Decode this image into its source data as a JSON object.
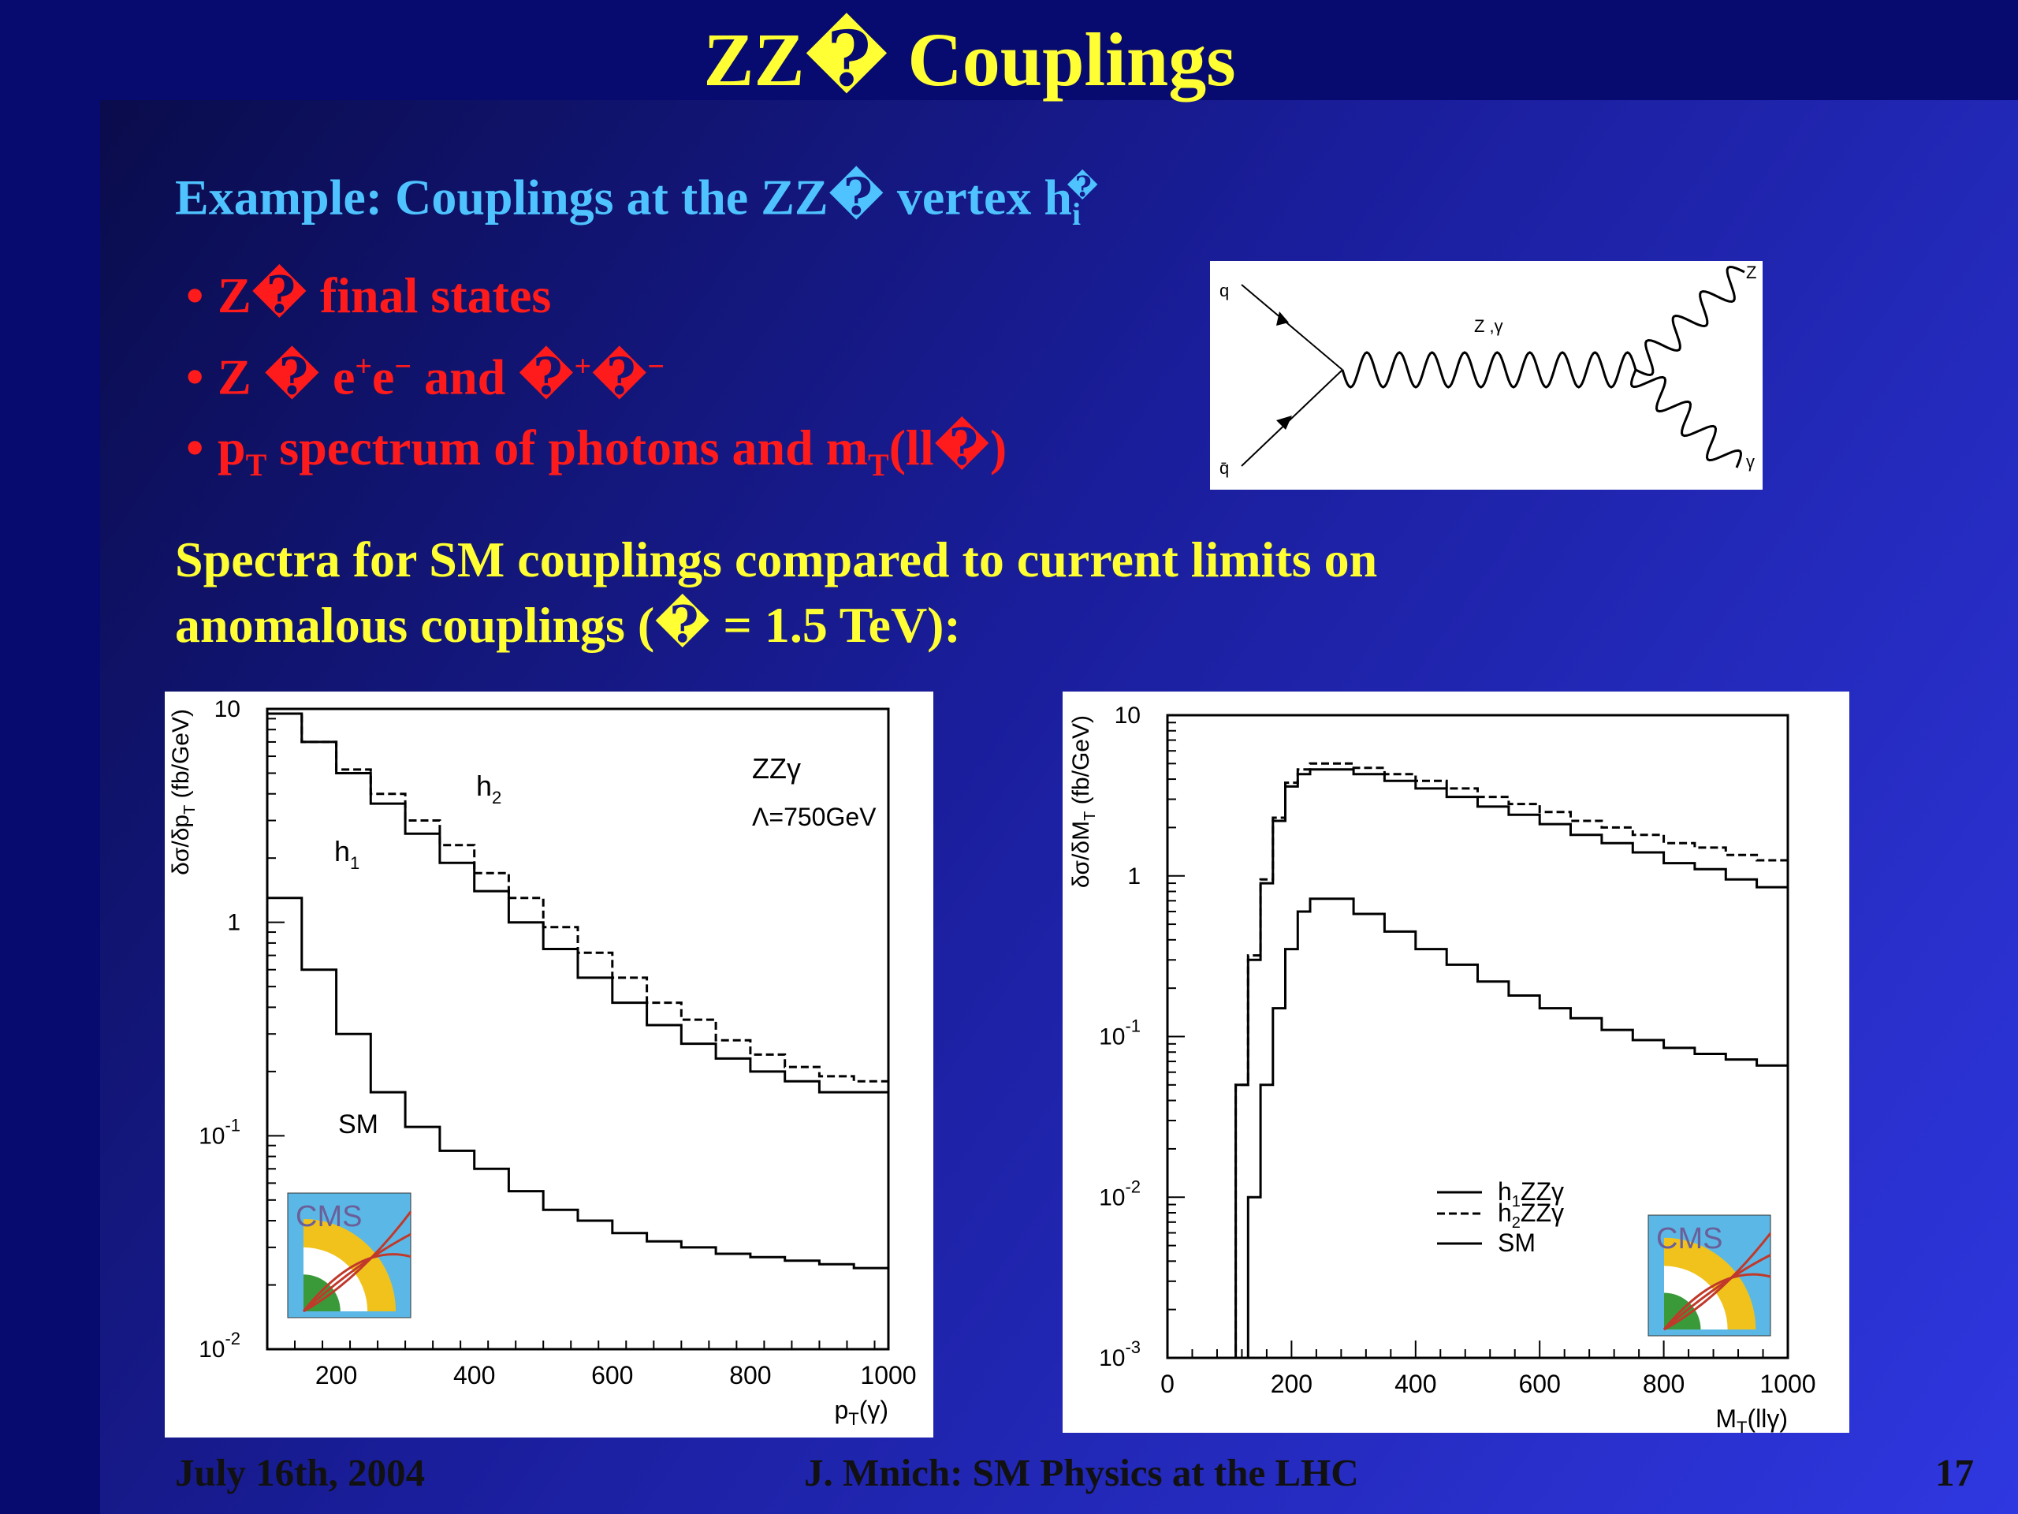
{
  "slide": {
    "title": "ZZ� Couplings",
    "subtitle": "Example: Couplings at the ZZ� vertex h",
    "subtitle_sub": "i",
    "subtitle_sup": "�",
    "bullets": [
      {
        "parts": [
          "Z� final states"
        ]
      },
      {
        "parts": [
          "Z � e",
          "+",
          "e",
          "−",
          " and �",
          "+",
          "�",
          "−"
        ]
      },
      {
        "parts": [
          "p",
          "T",
          " spectrum of photons and m",
          "T",
          "(ll�)"
        ]
      }
    ],
    "spectra_line1": "Spectra for SM couplings compared  to current limits on",
    "spectra_line2": "anomalous couplings (� = 1.5 TeV):",
    "colors": {
      "title": "#ffff33",
      "subtitle": "#4ec3ff",
      "bullets": "#ff1b1b",
      "spectra": "#ffff33",
      "background": "#070a6e"
    }
  },
  "feynman": {
    "q": "q",
    "qbar": "q̄",
    "propagator": "Z ,γ",
    "out_z": "Z",
    "out_gamma": "γ"
  },
  "footer": {
    "date": "July 16th, 2004",
    "center": "J. Mnich: SM Physics at the LHC",
    "page": "17"
  },
  "chart_data": [
    {
      "type": "line",
      "title": "",
      "annotation_process": "ZZγ",
      "annotation_lambda": "Λ=750GeV",
      "xlabel": "p",
      "xlabel_sub": "T",
      "xlabel_suffix": "(γ)",
      "ylabel": "δσ/δp",
      "ylabel_sub": "T",
      "ylabel_suffix": " (fb/GeV)",
      "xlim": [
        100,
        1000
      ],
      "ylim": [
        0.01,
        10
      ],
      "yscale": "log",
      "xticks": [
        "200",
        "400",
        "600",
        "800",
        "1000"
      ],
      "yticks": [
        {
          "value": 10,
          "label": "10"
        },
        {
          "value": 1,
          "label": "1"
        },
        {
          "value": 0.1,
          "label": "10",
          "sup": "-1"
        },
        {
          "value": 0.01,
          "label": "10",
          "sup": "-2"
        }
      ],
      "legend_logo": "CMS",
      "series": [
        {
          "name": "h",
          "sub": "2",
          "style": "dashed",
          "x": [
            100,
            150,
            200,
            250,
            300,
            350,
            400,
            450,
            500,
            550,
            600,
            650,
            700,
            750,
            800,
            850,
            900,
            950,
            1000
          ],
          "y": [
            9.5,
            7.0,
            5.2,
            4.0,
            3.0,
            2.3,
            1.7,
            1.3,
            0.95,
            0.72,
            0.55,
            0.42,
            0.35,
            0.28,
            0.24,
            0.21,
            0.19,
            0.18,
            0.17
          ]
        },
        {
          "name": "h",
          "sub": "1",
          "style": "solid",
          "x": [
            100,
            150,
            200,
            250,
            300,
            350,
            400,
            450,
            500,
            550,
            600,
            650,
            700,
            750,
            800,
            850,
            900,
            950,
            1000
          ],
          "y": [
            9.5,
            7.0,
            5.0,
            3.6,
            2.6,
            1.9,
            1.4,
            1.0,
            0.75,
            0.55,
            0.42,
            0.33,
            0.27,
            0.23,
            0.2,
            0.18,
            0.16,
            0.16,
            0.16
          ]
        },
        {
          "name": "SM",
          "style": "solid",
          "x": [
            100,
            150,
            200,
            250,
            300,
            350,
            400,
            450,
            500,
            550,
            600,
            650,
            700,
            750,
            800,
            850,
            900,
            950,
            1000
          ],
          "y": [
            1.3,
            0.6,
            0.3,
            0.16,
            0.11,
            0.085,
            0.07,
            0.055,
            0.045,
            0.04,
            0.035,
            0.032,
            0.03,
            0.028,
            0.027,
            0.026,
            0.025,
            0.024,
            0.023
          ]
        }
      ]
    },
    {
      "type": "line",
      "title": "",
      "xlabel": "M",
      "xlabel_sub": "T",
      "xlabel_suffix": "(llγ)",
      "ylabel": "δσ/δM",
      "ylabel_sub": "T",
      "ylabel_suffix": " (fb/GeV)",
      "xlim": [
        0,
        1000
      ],
      "ylim": [
        0.001,
        10
      ],
      "yscale": "log",
      "xticks": [
        "0",
        "200",
        "400",
        "600",
        "800",
        "1000"
      ],
      "yticks": [
        {
          "value": 10,
          "label": "10"
        },
        {
          "value": 1,
          "label": "1"
        },
        {
          "value": 0.1,
          "label": "10",
          "sup": "-1"
        },
        {
          "value": 0.01,
          "label": "10",
          "sup": "-2"
        },
        {
          "value": 0.001,
          "label": "10",
          "sup": "-3"
        }
      ],
      "legend_logo": "CMS",
      "series": [
        {
          "name": "h",
          "sub": "1",
          "suffix": "ZZγ",
          "style": "solid",
          "x": [
            100,
            110,
            130,
            150,
            170,
            190,
            210,
            230,
            250,
            300,
            350,
            400,
            450,
            500,
            550,
            600,
            650,
            700,
            750,
            800,
            850,
            900,
            950,
            1000
          ],
          "y": [
            0.001,
            0.05,
            0.3,
            0.9,
            2.2,
            3.6,
            4.3,
            4.6,
            4.6,
            4.3,
            3.9,
            3.5,
            3.1,
            2.7,
            2.4,
            2.1,
            1.8,
            1.6,
            1.4,
            1.2,
            1.1,
            0.95,
            0.85,
            0.78
          ]
        },
        {
          "name": "h",
          "sub": "2",
          "suffix": "ZZγ",
          "style": "dashed",
          "x": [
            100,
            110,
            130,
            150,
            170,
            190,
            210,
            230,
            250,
            300,
            350,
            400,
            450,
            500,
            550,
            600,
            650,
            700,
            750,
            800,
            850,
            900,
            950,
            1000
          ],
          "y": [
            0.001,
            0.05,
            0.32,
            0.95,
            2.3,
            3.8,
            4.6,
            5.0,
            5.0,
            4.7,
            4.3,
            3.9,
            3.5,
            3.1,
            2.8,
            2.5,
            2.2,
            2.0,
            1.8,
            1.6,
            1.5,
            1.35,
            1.25,
            1.15
          ]
        },
        {
          "name": "SM",
          "style": "solid",
          "x": [
            110,
            130,
            150,
            170,
            190,
            210,
            230,
            250,
            300,
            350,
            400,
            450,
            500,
            550,
            600,
            650,
            700,
            750,
            800,
            850,
            900,
            950,
            1000
          ],
          "y": [
            0.001,
            0.01,
            0.05,
            0.15,
            0.35,
            0.6,
            0.72,
            0.72,
            0.58,
            0.45,
            0.35,
            0.28,
            0.22,
            0.18,
            0.15,
            0.13,
            0.11,
            0.095,
            0.085,
            0.078,
            0.072,
            0.066,
            0.06
          ]
        }
      ]
    }
  ]
}
